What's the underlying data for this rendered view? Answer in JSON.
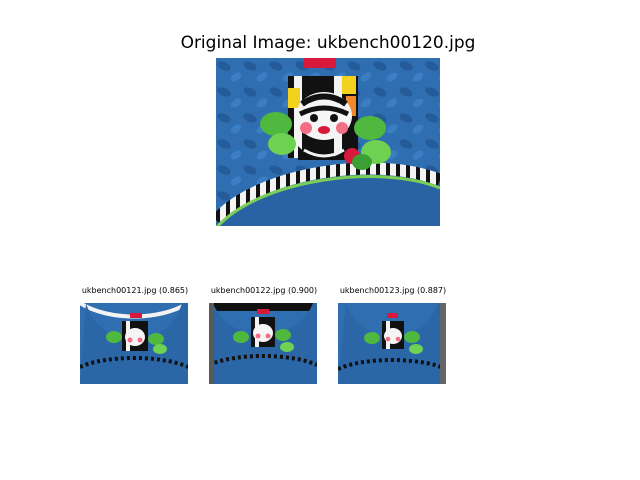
{
  "figure": {
    "title": "Original Image: ukbench00120.jpg"
  },
  "results": [
    {
      "caption": "ukbench00121.jpg (0.865)"
    },
    {
      "caption": "ukbench00122.jpg (0.900)"
    },
    {
      "caption": "ukbench00123.jpg (0.887)"
    }
  ],
  "colors": {
    "fabric_blue": "#2f6fb1",
    "fabric_dark": "#1f4f87",
    "leaf_green": "#4fb83f",
    "stripe_black": "#111111",
    "stripe_white": "#f3f3f3",
    "accent_red": "#d8193b",
    "accent_yellow": "#f2d21c",
    "accent_orange": "#f0892c"
  }
}
